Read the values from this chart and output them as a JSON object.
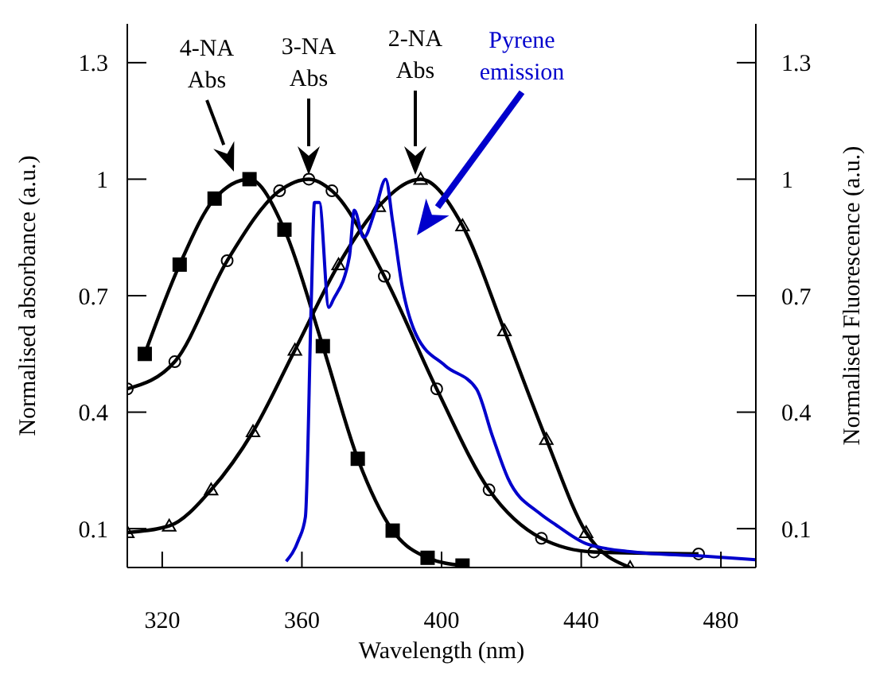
{
  "chart_data": {
    "type": "line",
    "xlabel": "Wavelength (nm)",
    "ylabel": "Normalised absorbance (a.u.)",
    "y2label": "Normalised Fluorescence (a.u.)",
    "xlim": [
      310,
      490
    ],
    "xticks": [
      320,
      360,
      400,
      440,
      480
    ],
    "ylim": [
      0,
      1.4
    ],
    "yticks": [
      0.1,
      0.4,
      0.7,
      1,
      1.3
    ],
    "y2lim": [
      0,
      1.4
    ],
    "y2ticks": [
      0.1,
      0.4,
      0.7,
      1,
      1.3
    ],
    "series": [
      {
        "color": "#000000",
        "marker": "square",
        "x": [
          315,
          325,
          335,
          345,
          355,
          366,
          376,
          386,
          396,
          406
        ],
        "values": [
          0.55,
          0.78,
          0.95,
          1.0,
          0.87,
          0.57,
          0.28,
          0.095,
          0.025,
          0.005
        ]
      },
      {
        "color": "#000000",
        "marker": "circle",
        "x": [
          310,
          323.6,
          338.6,
          353.6,
          362,
          368.6,
          383.6,
          398.6,
          413.6,
          428.6,
          443.6,
          473.6
        ],
        "values": [
          0.46,
          0.53,
          0.79,
          0.97,
          1.0,
          0.97,
          0.75,
          0.46,
          0.2,
          0.075,
          0.04,
          0.035
        ]
      },
      {
        "color": "#000000",
        "marker": "triangle",
        "x": [
          310,
          322,
          334,
          346,
          358,
          370.5,
          382,
          394,
          406,
          418,
          430,
          441.4,
          454
        ],
        "values": [
          0.09,
          0.107,
          0.2,
          0.35,
          0.56,
          0.78,
          0.93,
          1.0,
          0.88,
          0.61,
          0.33,
          0.09,
          0.0
        ]
      },
      {
        "color": "#0000cc",
        "marker": "none",
        "axis": "y2",
        "x": [
          355.5,
          359,
          361,
          362.7,
          363.6,
          365,
          367.7,
          369,
          373.6,
          375,
          377.7,
          381,
          384,
          386,
          388.6,
          392.7,
          401,
          410,
          414.5,
          419,
          428,
          432.7,
          441.8,
          455,
          473.6,
          490
        ],
        "values": [
          0.016,
          0.07,
          0.13,
          0.69,
          0.94,
          0.94,
          0.67,
          0.69,
          0.8,
          0.92,
          0.85,
          0.92,
          1.0,
          0.89,
          0.73,
          0.6,
          0.52,
          0.46,
          0.34,
          0.23,
          0.14,
          0.11,
          0.06,
          0.04,
          0.03,
          0.02
        ]
      }
    ],
    "annotations": [
      "4-NA Abs",
      "3-NA Abs",
      "2-NA Abs",
      "Pyrene emission"
    ]
  }
}
